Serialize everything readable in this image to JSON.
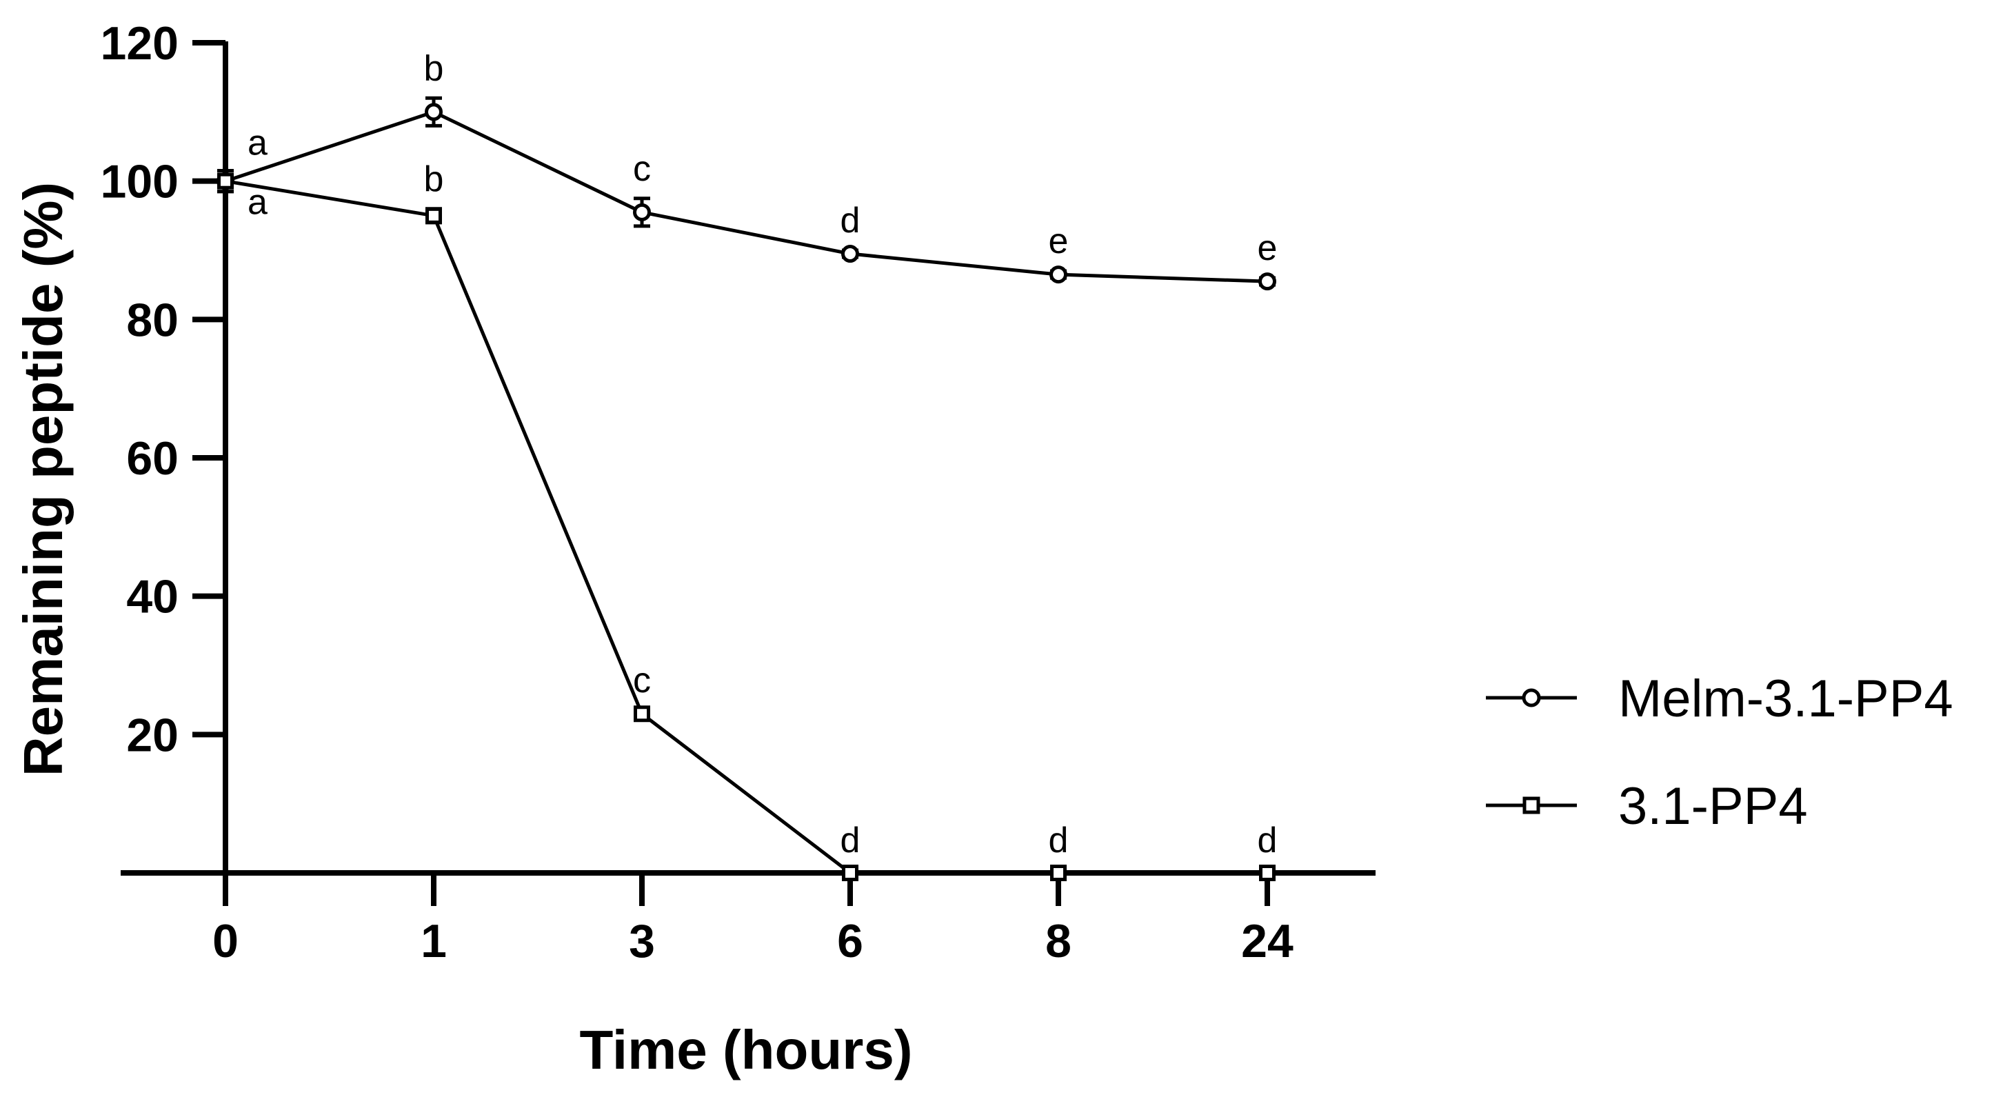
{
  "chart_data": {
    "type": "line",
    "title": "",
    "xlabel": "Time (hours)",
    "ylabel": "Remaining peptide (%)",
    "categories": [
      "0",
      "1",
      "3",
      "6",
      "8",
      "24"
    ],
    "ylim": [
      0,
      120
    ],
    "yticks": [
      20,
      40,
      60,
      80,
      100,
      120
    ],
    "grid": false,
    "legend_position": "right",
    "series": [
      {
        "name": "Melm-3.1-PP4",
        "marker": "circle",
        "values": [
          100,
          110,
          95.5,
          89.5,
          86.5,
          85.5
        ],
        "errors": [
          1.5,
          2,
          2,
          0.5,
          0.5,
          0.5
        ],
        "labels": [
          "a",
          "b",
          "c",
          "d",
          "e",
          "e"
        ]
      },
      {
        "name": "3.1-PP4",
        "marker": "square",
        "values": [
          100,
          95,
          23,
          0,
          0,
          0
        ],
        "errors": [
          1.5,
          1,
          0.5,
          0,
          0,
          0
        ],
        "labels": [
          "a",
          "b",
          "c",
          "d",
          "d",
          "d"
        ]
      }
    ]
  },
  "colors": {
    "line": "#000000",
    "background": "#ffffff"
  }
}
